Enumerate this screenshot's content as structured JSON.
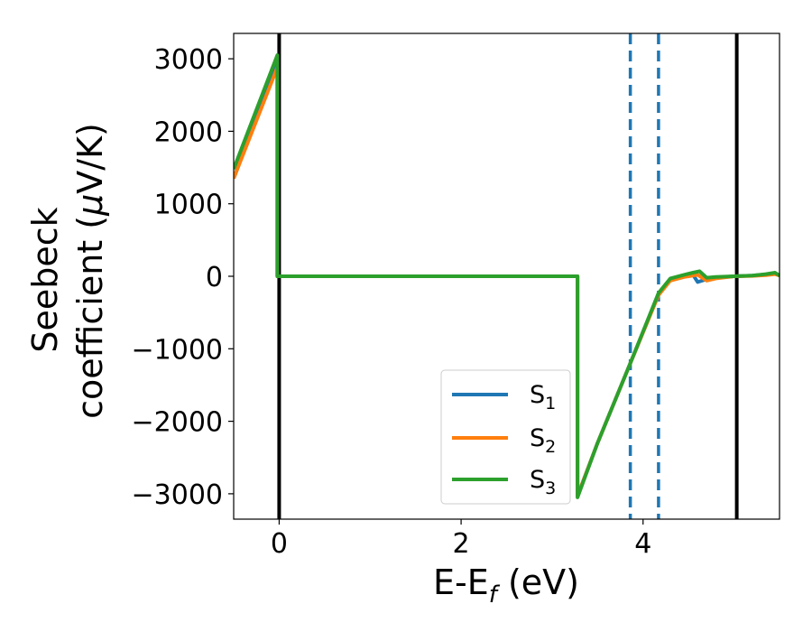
{
  "chart_data": {
    "type": "line",
    "xlabel": {
      "main": "E-E",
      "sub": "f",
      "suffix": " (eV)"
    },
    "ylabel": {
      "line1": "Seebeck",
      "line2_prefix": "coefficient  (",
      "line2_mu": "μ",
      "line2_suffix": "V/K)"
    },
    "xlim": [
      -0.5,
      5.5
    ],
    "ylim": [
      -3350,
      3350
    ],
    "xticks": [
      0,
      2,
      4
    ],
    "xtick_labels": [
      "0",
      "2",
      "4"
    ],
    "yticks": [
      3000,
      2000,
      1000,
      0,
      -1000,
      -2000,
      -3000
    ],
    "ytick_labels": [
      "3000",
      "2000",
      "1000",
      "0",
      "−1000",
      "−2000",
      "−3000"
    ],
    "grid": false,
    "legend_position": "lower-right",
    "vertical_lines": [
      {
        "x": 0.0,
        "color": "#000000",
        "style": "solid"
      },
      {
        "x": 5.03,
        "color": "#000000",
        "style": "solid"
      },
      {
        "x": 3.86,
        "color": "#1f77b4",
        "style": "dashed"
      },
      {
        "x": 4.17,
        "color": "#1f77b4",
        "style": "dashed"
      }
    ],
    "series": [
      {
        "name_main": "S",
        "name_sub": "1",
        "color": "#1f77b4",
        "x": [
          -0.5,
          -0.02,
          -0.02,
          3.28,
          3.28,
          3.5,
          3.86,
          4.17,
          4.3,
          4.45,
          4.55,
          4.6,
          4.7,
          4.8,
          5.0,
          5.2,
          5.35,
          5.45,
          5.5
        ],
        "y": [
          1350,
          2950,
          0,
          0,
          -3030,
          -2300,
          -1200,
          -250,
          -40,
          10,
          20,
          -80,
          -40,
          -20,
          0,
          10,
          25,
          40,
          10
        ]
      },
      {
        "name_main": "S",
        "name_sub": "2",
        "color": "#ff7f0e",
        "x": [
          -0.5,
          -0.02,
          -0.02,
          3.28,
          3.28,
          3.5,
          3.86,
          4.17,
          4.3,
          4.45,
          4.55,
          4.6,
          4.7,
          4.8,
          5.0,
          5.2,
          5.35,
          5.45,
          5.5
        ],
        "y": [
          1350,
          2880,
          0,
          0,
          -3030,
          -2300,
          -1200,
          -260,
          -60,
          -10,
          10,
          20,
          -60,
          -30,
          0,
          5,
          15,
          30,
          10
        ]
      },
      {
        "name_main": "S",
        "name_sub": "3",
        "color": "#2ca02c",
        "x": [
          -0.5,
          -0.02,
          -0.02,
          3.28,
          3.28,
          3.5,
          3.86,
          4.17,
          4.3,
          4.45,
          4.55,
          4.62,
          4.7,
          4.8,
          5.0,
          5.2,
          5.35,
          5.45,
          5.5
        ],
        "y": [
          1480,
          3050,
          0,
          0,
          -3050,
          -2300,
          -1200,
          -230,
          -30,
          20,
          50,
          70,
          -20,
          -10,
          0,
          10,
          30,
          50,
          10
        ]
      }
    ]
  }
}
